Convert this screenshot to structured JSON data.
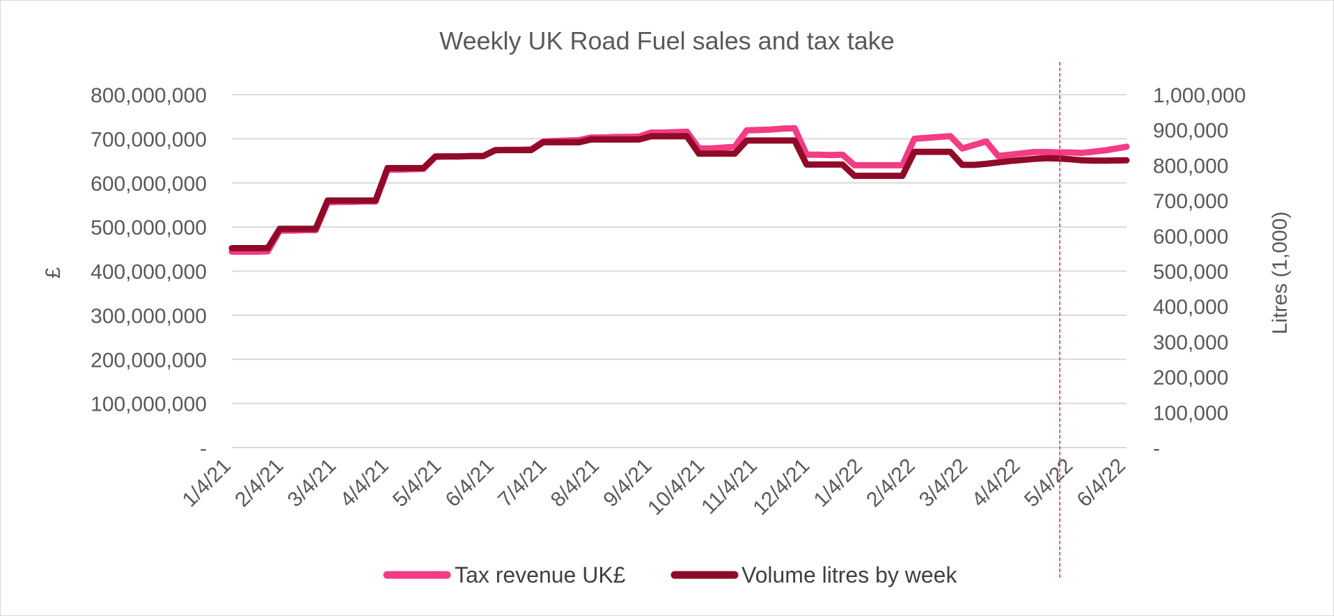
{
  "chart_data": {
    "type": "line",
    "title": "Weekly UK Road Fuel sales and tax take",
    "ylabel_left": "£",
    "ylabel_right": "Litres (1,000)",
    "y_left_ticks": [
      "-",
      "100,000,000",
      "200,000,000",
      "300,000,000",
      "400,000,000",
      "500,000,000",
      "600,000,000",
      "700,000,000",
      "800,000,000"
    ],
    "y_right_ticks": [
      "-",
      "100,000",
      "200,000",
      "300,000",
      "400,000",
      "500,000",
      "600,000",
      "700,000",
      "800,000",
      "900,000",
      "1,000,000"
    ],
    "ylim_left": [
      0,
      800000000
    ],
    "ylim_right": [
      0,
      1000000
    ],
    "x_tick_labels": [
      "1/4/21",
      "2/4/21",
      "3/4/21",
      "4/4/21",
      "5/4/21",
      "6/4/21",
      "7/4/21",
      "8/4/21",
      "9/4/21",
      "10/4/21",
      "11/4/21",
      "12/4/21",
      "1/4/22",
      "2/4/22",
      "3/4/22",
      "4/4/22",
      "5/4/22",
      "6/4/22"
    ],
    "x_range": [
      "2021-01-04",
      "2022-06-11"
    ],
    "vertical_marker": "2022-05-03",
    "grid": true,
    "legend": "bottom",
    "colors": {
      "tax": "#f23c84",
      "volume": "#8f0a27",
      "marker": "#e8206e"
    },
    "series": [
      {
        "name": "Tax revenue UK£",
        "axis": "left",
        "points": [
          [
            "2021-01-04",
            444000000
          ],
          [
            "2021-01-11",
            444000000
          ],
          [
            "2021-01-18",
            444000000
          ],
          [
            "2021-01-25",
            445000000
          ],
          [
            "2021-02-01",
            492000000
          ],
          [
            "2021-02-08",
            492000000
          ],
          [
            "2021-02-15",
            493000000
          ],
          [
            "2021-02-22",
            493000000
          ],
          [
            "2021-03-01",
            556000000
          ],
          [
            "2021-03-08",
            557000000
          ],
          [
            "2021-03-15",
            557000000
          ],
          [
            "2021-03-22",
            558000000
          ],
          [
            "2021-03-29",
            558000000
          ],
          [
            "2021-04-05",
            630000000
          ],
          [
            "2021-04-12",
            630000000
          ],
          [
            "2021-04-19",
            631000000
          ],
          [
            "2021-04-26",
            632000000
          ],
          [
            "2021-05-03",
            659000000
          ],
          [
            "2021-05-10",
            660000000
          ],
          [
            "2021-05-17",
            660000000
          ],
          [
            "2021-05-24",
            661000000
          ],
          [
            "2021-05-31",
            661000000
          ],
          [
            "2021-06-07",
            674000000
          ],
          [
            "2021-06-14",
            675000000
          ],
          [
            "2021-06-21",
            675000000
          ],
          [
            "2021-06-28",
            676000000
          ],
          [
            "2021-07-05",
            694000000
          ],
          [
            "2021-07-12",
            695000000
          ],
          [
            "2021-07-19",
            696000000
          ],
          [
            "2021-07-26",
            697000000
          ],
          [
            "2021-08-02",
            703000000
          ],
          [
            "2021-08-09",
            703000000
          ],
          [
            "2021-08-16",
            704000000
          ],
          [
            "2021-08-23",
            704000000
          ],
          [
            "2021-08-30",
            705000000
          ],
          [
            "2021-09-06",
            714000000
          ],
          [
            "2021-09-13",
            714000000
          ],
          [
            "2021-09-20",
            715000000
          ],
          [
            "2021-09-27",
            716000000
          ],
          [
            "2021-10-04",
            678000000
          ],
          [
            "2021-10-11",
            678000000
          ],
          [
            "2021-10-18",
            680000000
          ],
          [
            "2021-10-25",
            682000000
          ],
          [
            "2021-11-01",
            719000000
          ],
          [
            "2021-11-08",
            720000000
          ],
          [
            "2021-11-15",
            721000000
          ],
          [
            "2021-11-22",
            723000000
          ],
          [
            "2021-11-29",
            724000000
          ],
          [
            "2021-12-06",
            664000000
          ],
          [
            "2021-12-13",
            664000000
          ],
          [
            "2021-12-20",
            663000000
          ],
          [
            "2021-12-27",
            664000000
          ],
          [
            "2022-01-03",
            640000000
          ],
          [
            "2022-01-10",
            640000000
          ],
          [
            "2022-01-17",
            640000000
          ],
          [
            "2022-01-24",
            640000000
          ],
          [
            "2022-01-31",
            640000000
          ],
          [
            "2022-02-07",
            700000000
          ],
          [
            "2022-02-14",
            702000000
          ],
          [
            "2022-02-21",
            704000000
          ],
          [
            "2022-02-28",
            706000000
          ],
          [
            "2022-03-07",
            678000000
          ],
          [
            "2022-03-14",
            686000000
          ],
          [
            "2022-03-21",
            694000000
          ],
          [
            "2022-03-28",
            661000000
          ],
          [
            "2022-04-04",
            664000000
          ],
          [
            "2022-04-11",
            667000000
          ],
          [
            "2022-04-18",
            670000000
          ],
          [
            "2022-04-25",
            670000000
          ],
          [
            "2022-05-02",
            669000000
          ],
          [
            "2022-05-09",
            669000000
          ],
          [
            "2022-05-16",
            668000000
          ],
          [
            "2022-05-23",
            671000000
          ],
          [
            "2022-05-30",
            674000000
          ],
          [
            "2022-06-11",
            682000000
          ]
        ]
      },
      {
        "name": "Volume litres by week",
        "axis": "right",
        "points": [
          [
            "2021-01-04",
            565000
          ],
          [
            "2021-01-11",
            565000
          ],
          [
            "2021-01-18",
            565000
          ],
          [
            "2021-01-25",
            565000
          ],
          [
            "2021-02-01",
            620000
          ],
          [
            "2021-02-08",
            620000
          ],
          [
            "2021-02-15",
            620000
          ],
          [
            "2021-02-22",
            620000
          ],
          [
            "2021-03-01",
            700000
          ],
          [
            "2021-03-08",
            700000
          ],
          [
            "2021-03-15",
            700000
          ],
          [
            "2021-03-22",
            700000
          ],
          [
            "2021-03-29",
            700000
          ],
          [
            "2021-04-05",
            792000
          ],
          [
            "2021-04-12",
            792000
          ],
          [
            "2021-04-19",
            792000
          ],
          [
            "2021-04-26",
            792000
          ],
          [
            "2021-05-03",
            825000
          ],
          [
            "2021-05-10",
            825000
          ],
          [
            "2021-05-17",
            825000
          ],
          [
            "2021-05-24",
            826000
          ],
          [
            "2021-05-31",
            826000
          ],
          [
            "2021-06-07",
            843000
          ],
          [
            "2021-06-14",
            843000
          ],
          [
            "2021-06-21",
            843000
          ],
          [
            "2021-06-28",
            843000
          ],
          [
            "2021-07-05",
            865000
          ],
          [
            "2021-07-12",
            865000
          ],
          [
            "2021-07-19",
            865000
          ],
          [
            "2021-07-26",
            865000
          ],
          [
            "2021-08-02",
            873000
          ],
          [
            "2021-08-09",
            873000
          ],
          [
            "2021-08-16",
            873000
          ],
          [
            "2021-08-23",
            873000
          ],
          [
            "2021-08-30",
            873000
          ],
          [
            "2021-09-06",
            882000
          ],
          [
            "2021-09-13",
            882000
          ],
          [
            "2021-09-20",
            882000
          ],
          [
            "2021-09-27",
            882000
          ],
          [
            "2021-10-04",
            833000
          ],
          [
            "2021-10-11",
            833000
          ],
          [
            "2021-10-18",
            833000
          ],
          [
            "2021-10-25",
            833000
          ],
          [
            "2021-11-01",
            870000
          ],
          [
            "2021-11-08",
            870000
          ],
          [
            "2021-11-15",
            870000
          ],
          [
            "2021-11-22",
            870000
          ],
          [
            "2021-11-29",
            870000
          ],
          [
            "2021-12-06",
            802000
          ],
          [
            "2021-12-13",
            802000
          ],
          [
            "2021-12-20",
            802000
          ],
          [
            "2021-12-27",
            802000
          ],
          [
            "2022-01-03",
            770000
          ],
          [
            "2022-01-10",
            770000
          ],
          [
            "2022-01-17",
            770000
          ],
          [
            "2022-01-24",
            770000
          ],
          [
            "2022-01-31",
            770000
          ],
          [
            "2022-02-07",
            838000
          ],
          [
            "2022-02-14",
            838000
          ],
          [
            "2022-02-21",
            838000
          ],
          [
            "2022-02-28",
            838000
          ],
          [
            "2022-03-07",
            801000
          ],
          [
            "2022-03-14",
            801000
          ],
          [
            "2022-03-21",
            804000
          ],
          [
            "2022-03-28",
            808000
          ],
          [
            "2022-04-04",
            812000
          ],
          [
            "2022-04-11",
            815000
          ],
          [
            "2022-04-18",
            818000
          ],
          [
            "2022-04-25",
            820000
          ],
          [
            "2022-05-02",
            819000
          ],
          [
            "2022-05-09",
            817000
          ],
          [
            "2022-05-16",
            814000
          ],
          [
            "2022-05-23",
            813000
          ],
          [
            "2022-05-30",
            813000
          ],
          [
            "2022-06-11",
            814000
          ]
        ]
      }
    ]
  }
}
